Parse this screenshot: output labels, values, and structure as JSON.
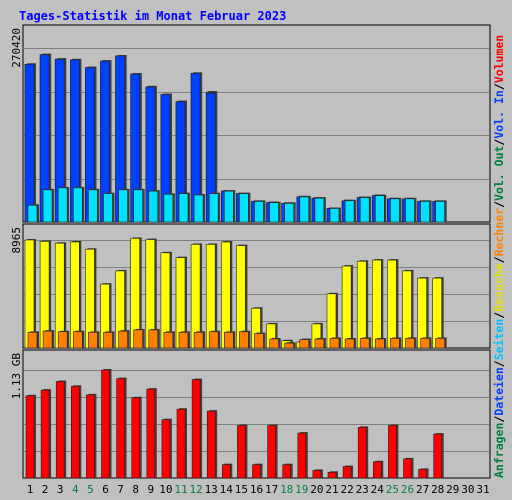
{
  "chart_data": {
    "type": "bar",
    "title": "Tages-Statistik im Monat Februar 2023",
    "days": [
      "1",
      "2",
      "3",
      "4",
      "5",
      "6",
      "7",
      "8",
      "9",
      "10",
      "11",
      "12",
      "13",
      "14",
      "15",
      "16",
      "17",
      "18",
      "19",
      "20",
      "21",
      "22",
      "23",
      "24",
      "25",
      "26",
      "27",
      "28",
      "29",
      "30",
      "31"
    ],
    "weekend_days": [
      "4",
      "5",
      "11",
      "12",
      "18",
      "19",
      "25",
      "26"
    ],
    "legend": [
      {
        "text": "Anfragen",
        "color": "#008040"
      },
      {
        "text": "/",
        "color": "#000000"
      },
      {
        "text": "Dateien",
        "color": "#0040ff"
      },
      {
        "text": "/",
        "color": "#000000"
      },
      {
        "text": "Seiten",
        "color": "#00c0ff"
      },
      {
        "text": "/",
        "color": "#000000"
      },
      {
        "text": "Besuche",
        "color": "#e0e000"
      },
      {
        "text": "/",
        "color": "#000000"
      },
      {
        "text": "Rechner",
        "color": "#ff8000"
      },
      {
        "text": "/",
        "color": "#000000"
      },
      {
        "text": "Vol. Out",
        "color": "#008040"
      },
      {
        "text": "/",
        "color": "#000000"
      },
      {
        "text": "Vol. In",
        "color": "#0040ff"
      },
      {
        "text": "/",
        "color": "#000000"
      },
      {
        "text": "Volumen",
        "color": "#ff0000"
      }
    ],
    "panels": [
      {
        "max_label": "270420",
        "ymax": 270420,
        "series": [
          {
            "key": "anfragen",
            "color": "#00a060",
            "values": [
              245000,
              260000,
              253000,
              252000,
              240000,
              250000,
              258000,
              230000,
              210000,
              198000,
              187000,
              231000,
              202000,
              48000,
              44000,
              32000,
              30000,
              29000,
              39000,
              37000,
              21000,
              33000,
              38000,
              41000,
              36000,
              36000,
              32000,
              32000,
              null,
              null,
              null
            ]
          },
          {
            "key": "dateien",
            "color": "#0040ff",
            "values": [
              245000,
              260000,
              253000,
              252000,
              240000,
              250000,
              258000,
              230000,
              210000,
              198000,
              187000,
              231000,
              200000,
              48000,
              44000,
              32000,
              30000,
              29000,
              39000,
              37000,
              21000,
              33000,
              38000,
              41000,
              36000,
              36000,
              32000,
              32000,
              null,
              null,
              null
            ]
          },
          {
            "key": "seiten",
            "color": "#00e0ff",
            "values": [
              26000,
              50000,
              53000,
              53000,
              50000,
              44000,
              50000,
              50000,
              48000,
              43000,
              44000,
              42000,
              44000,
              48000,
              44000,
              32000,
              30000,
              29000,
              39000,
              37000,
              21000,
              33000,
              38000,
              41000,
              36000,
              36000,
              32000,
              32000,
              null,
              null,
              null
            ]
          }
        ]
      },
      {
        "max_label": "8965",
        "ymax": 8965,
        "series": [
          {
            "key": "besuche",
            "color": "#ffff00",
            "values": [
              8965,
              8850,
              8700,
              8800,
              8200,
              5300,
              6400,
              9100,
              9000,
              7900,
              7500,
              8600,
              8600,
              8800,
              8500,
              3300,
              2000,
              600,
              500,
              2000,
              4500,
              6800,
              7200,
              7300,
              7300,
              6400,
              5800,
              5800,
              null,
              null,
              null
            ]
          },
          {
            "key": "rechner",
            "color": "#ff8000",
            "values": [
              1300,
              1400,
              1350,
              1350,
              1300,
              1300,
              1400,
              1500,
              1500,
              1300,
              1300,
              1300,
              1350,
              1300,
              1350,
              1200,
              750,
              400,
              700,
              750,
              800,
              750,
              800,
              750,
              800,
              800,
              800,
              800,
              null,
              null,
              null
            ]
          }
        ]
      },
      {
        "max_label": "1.13 GB",
        "ymax": 1.13,
        "series": [
          {
            "key": "volumen",
            "color": "#ff0000",
            "values": [
              0.86,
              0.92,
              1.01,
              0.96,
              0.87,
              1.13,
              1.04,
              0.84,
              0.93,
              0.61,
              0.72,
              1.03,
              0.7,
              0.14,
              0.55,
              0.14,
              0.55,
              0.14,
              0.47,
              0.08,
              0.06,
              0.12,
              0.53,
              0.17,
              0.55,
              0.2,
              0.09,
              0.46,
              null,
              null,
              null
            ]
          }
        ]
      }
    ]
  }
}
